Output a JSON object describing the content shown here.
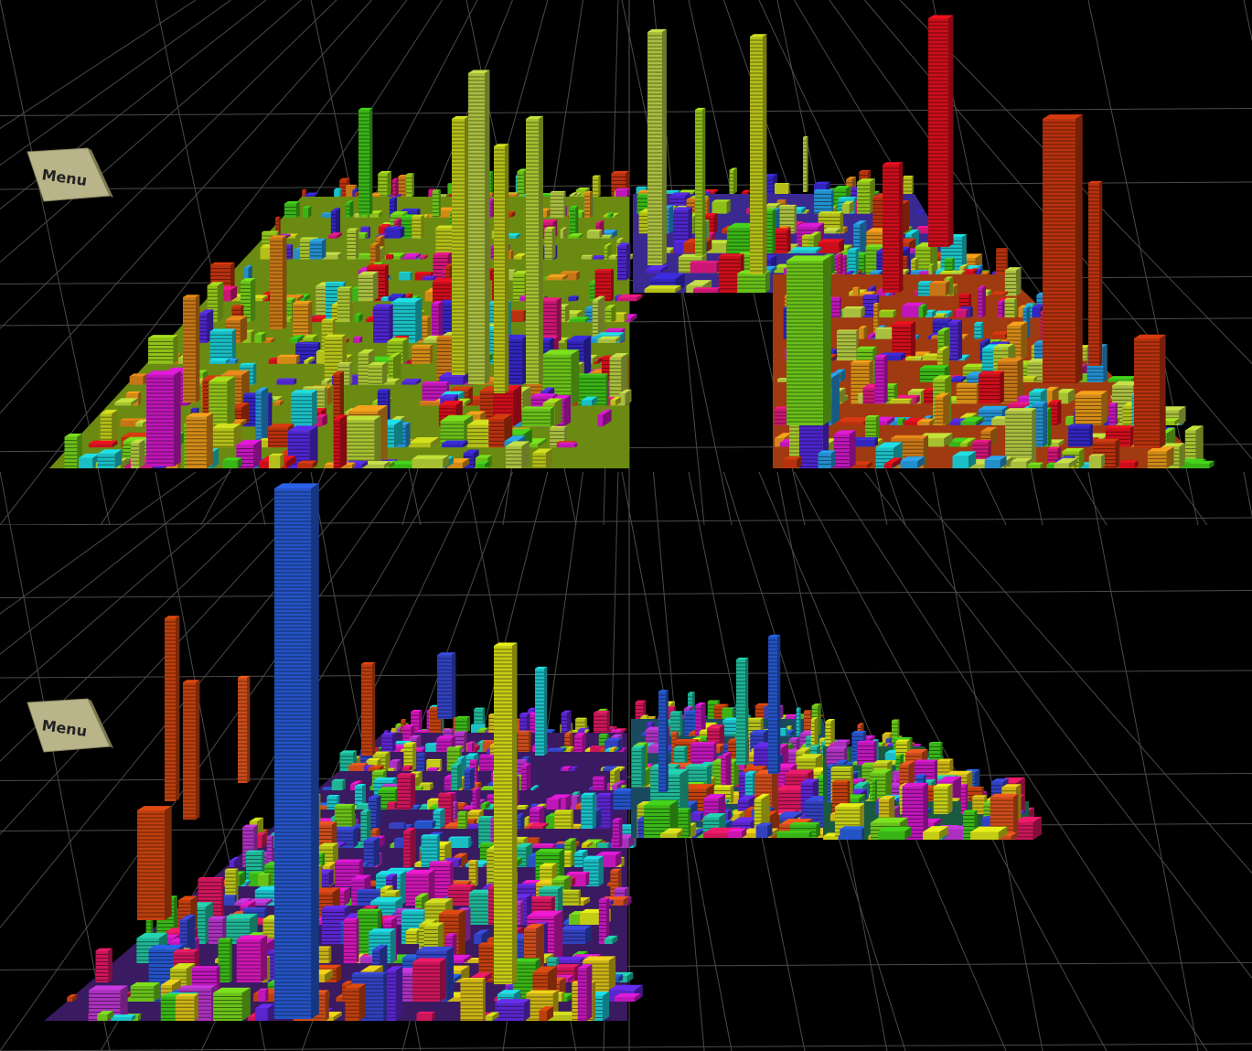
{
  "views": [
    {
      "id": "top",
      "menu_label": "Menu",
      "palette": [
        "#f7a21b",
        "#e98a1a",
        "#d4e11d",
        "#c3e23a",
        "#a8e21d",
        "#7be21d",
        "#43d41b",
        "#2aa6f0",
        "#1fe0e8",
        "#3b2ce0",
        "#5a2cf0",
        "#e01ad8",
        "#f01a8a",
        "#f01020",
        "#d83a10",
        "#c7e04a"
      ]
    },
    {
      "id": "bottom",
      "menu_label": "Menu",
      "palette": [
        "#e04a10",
        "#f05a20",
        "#c83ae0",
        "#e01ad8",
        "#f01ad0",
        "#3b4ce0",
        "#2a62e8",
        "#1fe0e8",
        "#24d4b0",
        "#43d41b",
        "#7be21d",
        "#d4e11d",
        "#f0d31a",
        "#e8f01a",
        "#6a2cf0",
        "#f01a6a"
      ]
    }
  ]
}
